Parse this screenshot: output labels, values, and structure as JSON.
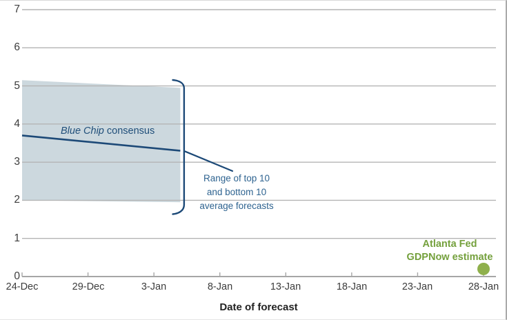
{
  "chart_data": {
    "type": "line",
    "title": "",
    "xlabel": "Date of forecast",
    "ylabel": "",
    "ylim": [
      0,
      7
    ],
    "grid": true,
    "y_tick_labels": [
      "7",
      "6",
      "5",
      "4",
      "3",
      "2",
      "1",
      "0"
    ],
    "x_ticks": [
      {
        "label": "24-Dec",
        "day": 0
      },
      {
        "label": "29-Dec",
        "day": 5
      },
      {
        "label": "3-Jan",
        "day": 10
      },
      {
        "label": "8-Jan",
        "day": 15
      },
      {
        "label": "13-Jan",
        "day": 20
      },
      {
        "label": "18-Jan",
        "day": 25
      },
      {
        "label": "23-Jan",
        "day": 30
      },
      {
        "label": "28-Jan",
        "day": 35
      }
    ],
    "series": [
      {
        "name": "Range of top 10 and bottom 10 average forecasts",
        "type": "band",
        "color": "#ccd8de",
        "upper": [
          [
            0,
            5.15
          ],
          [
            12,
            4.95
          ]
        ],
        "lower": [
          [
            0,
            2.0
          ],
          [
            12,
            1.95
          ]
        ]
      },
      {
        "name": "Blue Chip consensus",
        "type": "line",
        "color": "#1c4977",
        "points": [
          [
            0,
            3.7
          ],
          [
            12,
            3.3
          ]
        ]
      },
      {
        "name": "Atlanta Fed GDPNow estimate",
        "type": "scatter",
        "color": "#8fb04c",
        "points": [
          [
            35,
            0.2
          ]
        ]
      }
    ],
    "annotations": {
      "blue_chip": {
        "italic": "Blue Chip",
        "rest": " consensus"
      },
      "range": {
        "line1": "Range of top 10",
        "line2": "and bottom 10",
        "line3": "average forecasts"
      },
      "gdpnow": {
        "line1": "Atlanta Fed",
        "line2": "GDPNow estimate"
      }
    },
    "colors": {
      "grid": "#b4b4b4",
      "axis": "#a6a6a6",
      "band": "#ccd8de",
      "line": "#1c4977",
      "annotation_text": "#2e6390",
      "gdpnow_text": "#74a03c",
      "gdpnow_dot": "#8fb04c"
    }
  }
}
